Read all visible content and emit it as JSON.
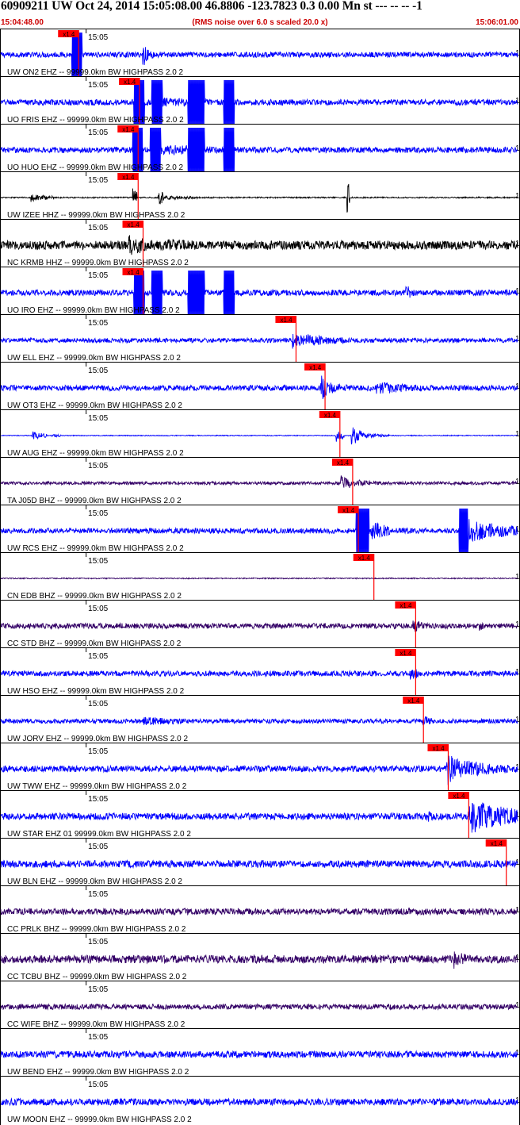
{
  "header": {
    "title": "60909211 UW Oct 24, 2014 15:05:08.00   46.8806 -123.7823  0.3 0.00 Mn st --- -- --   -1",
    "start_time": "15:04:48.00",
    "rms_note": "(RMS noise over 6.0 s scaled 20.0 x)",
    "end_time": "15:06:01.00"
  },
  "chart_data": {
    "type": "line",
    "title": "60909211 UW Oct 24, 2014 15:05:08.00   46.8806 -123.7823  0.3 0.00 Mn st --- -- --   -1",
    "time_start_s": 0,
    "time_end_s": 73,
    "time_tick_label": "15:05",
    "time_tick_s": 12,
    "pick_label": "x1.4",
    "trace_right_label": "1",
    "traces": [
      {
        "label": "UW ON2 EHZ -- 99999.0km BW  HIGHPASS  2.0  2",
        "color": "#0000ff",
        "pick_s": 11.0,
        "noise": 0.12,
        "bursts": [
          [
            10.0,
            11.5,
            0.95,
            1
          ],
          [
            20.0,
            20.6,
            0.7,
            0
          ],
          [
            20.6,
            24.0,
            0.25,
            0
          ]
        ]
      },
      {
        "label": "UO FRIS EHZ -- 99999.0km BW  HIGHPASS  2.0  2",
        "color": "#0000ff",
        "pick_s": 19.6,
        "noise": 0.13,
        "bursts": [
          [
            18.8,
            20.3,
            1.0,
            1
          ],
          [
            21.3,
            22.8,
            1.0,
            1
          ],
          [
            26.4,
            28.8,
            1.0,
            1
          ],
          [
            31.5,
            33.0,
            1.0,
            1
          ],
          [
            22.8,
            40.0,
            0.22,
            0
          ]
        ]
      },
      {
        "label": "UO HUO EHZ -- 99999.0km BW  HIGHPASS  2.0  2",
        "color": "#0000ff",
        "pick_s": 19.4,
        "noise": 0.13,
        "bursts": [
          [
            18.6,
            20.1,
            1.0,
            1
          ],
          [
            21.1,
            22.6,
            1.0,
            1
          ],
          [
            26.4,
            28.8,
            1.0,
            1
          ],
          [
            31.5,
            33.0,
            1.0,
            1
          ],
          [
            22.6,
            42.0,
            0.25,
            0
          ]
        ]
      },
      {
        "label": "UW IZEE HHZ -- 99999.0km BW  HIGHPASS  2.0  2",
        "color": "#000000",
        "pick_s": 19.4,
        "noise": 0.03,
        "bursts": [
          [
            4.2,
            7.5,
            0.2,
            0
          ],
          [
            18.6,
            19.4,
            0.45,
            0
          ],
          [
            22.2,
            23.0,
            0.5,
            0
          ],
          [
            23.0,
            28.0,
            0.12,
            0
          ],
          [
            48.9,
            49.3,
            0.95,
            0
          ]
        ]
      },
      {
        "label": "NC KRMB HHZ -- 99999.0km BW  HIGHPASS  2.0  2",
        "color": "#000000",
        "pick_s": 20.1,
        "noise": 0.2,
        "bursts": [
          [
            18.0,
            23.5,
            0.5,
            0
          ],
          [
            23.5,
            34.0,
            0.3,
            0
          ]
        ]
      },
      {
        "label": "UO IRO EHZ -- 99999.0km BW  HIGHPASS  2.0  2",
        "color": "#0000ff",
        "pick_s": 20.1,
        "noise": 0.13,
        "bursts": [
          [
            18.8,
            20.3,
            1.0,
            1
          ],
          [
            21.3,
            22.8,
            1.0,
            1
          ],
          [
            26.4,
            28.8,
            1.0,
            1
          ],
          [
            31.5,
            33.0,
            1.0,
            1
          ],
          [
            57.2,
            57.8,
            0.45,
            0
          ]
        ]
      },
      {
        "label": "UW ELL EHZ -- 99999.0km BW  HIGHPASS  2.0  2",
        "color": "#0000ff",
        "pick_s": 41.7,
        "noise": 0.1,
        "bursts": [
          [
            41.2,
            43.0,
            0.45,
            0
          ],
          [
            43.0,
            49.0,
            0.3,
            0
          ]
        ]
      },
      {
        "label": "UW OT3 EHZ -- 99999.0km BW  HIGHPASS  2.0  2",
        "color": "#0000ff",
        "pick_s": 45.8,
        "noise": 0.12,
        "bursts": [
          [
            45.2,
            47.0,
            0.6,
            0
          ],
          [
            47.0,
            53.0,
            0.2,
            0
          ],
          [
            53.0,
            62.0,
            0.28,
            0
          ]
        ]
      },
      {
        "label": "UW AUG EHZ -- 99999.0km BW  HIGHPASS  2.0  2",
        "color": "#0000ff",
        "pick_s": 47.9,
        "noise": 0.02,
        "bursts": [
          [
            4.4,
            6.5,
            0.2,
            0
          ],
          [
            7.2,
            8.8,
            0.1,
            0
          ],
          [
            47.3,
            48.5,
            0.3,
            0
          ],
          [
            49.5,
            51.0,
            0.5,
            0
          ],
          [
            51.0,
            55.0,
            0.12,
            0
          ]
        ]
      },
      {
        "label": "TA J05D BHZ -- 99999.0km BW  HIGHPASS  2.0  2",
        "color": "#330066",
        "pick_s": 49.7,
        "noise": 0.07,
        "bursts": [
          [
            48.0,
            50.5,
            0.35,
            0
          ],
          [
            50.5,
            55.0,
            0.15,
            0
          ]
        ]
      },
      {
        "label": "UW RCS EHZ -- 99999.0km BW  HIGHPASS  2.0  2",
        "color": "#0000ff",
        "pick_s": 50.5,
        "noise": 0.12,
        "bursts": [
          [
            50.2,
            52.0,
            1.0,
            1
          ],
          [
            52.0,
            55.0,
            0.55,
            0
          ],
          [
            64.7,
            66.0,
            1.0,
            1
          ],
          [
            66.0,
            73.0,
            0.55,
            0
          ]
        ]
      },
      {
        "label": "CN EDB BHZ -- 99999.0km BW  HIGHPASS  2.0  2",
        "color": "#330066",
        "pick_s": 52.7,
        "noise": 0.025,
        "bursts": []
      },
      {
        "label": "CC STD BHZ -- 99999.0km BW  HIGHPASS  2.0  2",
        "color": "#330066",
        "pick_s": 58.6,
        "noise": 0.12,
        "bursts": [
          [
            58.2,
            59.5,
            0.4,
            0
          ],
          [
            67.5,
            68.5,
            0.25,
            0
          ]
        ]
      },
      {
        "label": "UW HSO EHZ -- 99999.0km BW  HIGHPASS  2.0  2",
        "color": "#0000ff",
        "pick_s": 58.6,
        "noise": 0.12,
        "bursts": [
          [
            57.8,
            59.0,
            0.4,
            0
          ]
        ]
      },
      {
        "label": "UW JORV EHZ -- 99999.0km BW  HIGHPASS  2.0  2",
        "color": "#0000ff",
        "pick_s": 59.7,
        "noise": 0.1,
        "bursts": [
          [
            20.0,
            30.0,
            0.2,
            0
          ],
          [
            59.5,
            61.0,
            0.3,
            0
          ]
        ]
      },
      {
        "label": "UW TWW EHZ -- 99999.0km BW  HIGHPASS  2.0  2",
        "color": "#0000ff",
        "pick_s": 63.2,
        "noise": 0.14,
        "bursts": [
          [
            63.0,
            65.5,
            0.8,
            0
          ],
          [
            65.5,
            73.0,
            0.4,
            0
          ]
        ]
      },
      {
        "label": "UW STAR EHZ 01 99999.0km BW  HIGHPASS  2.0  2",
        "color": "#0000ff",
        "pick_s": 66.1,
        "noise": 0.15,
        "bursts": [
          [
            60.0,
            62.0,
            0.3,
            0
          ],
          [
            66.0,
            73.0,
            0.85,
            0
          ]
        ]
      },
      {
        "label": "UW BLN EHZ -- 99999.0km BW  HIGHPASS  2.0  2",
        "color": "#0000ff",
        "pick_s": 71.4,
        "noise": 0.16,
        "bursts": []
      },
      {
        "label": "CC PRLK BHZ -- 99999.0km BW  HIGHPASS  2.0  2",
        "color": "#330066",
        "pick_s": null,
        "noise": 0.14,
        "bursts": []
      },
      {
        "label": "CC TCBU BHZ -- 99999.0km BW  HIGHPASS  2.0  2",
        "color": "#330066",
        "pick_s": null,
        "noise": 0.18,
        "bursts": [
          [
            64.0,
            66.0,
            0.45,
            0
          ]
        ]
      },
      {
        "label": "CC WIFE BHZ -- 99999.0km BW  HIGHPASS  2.0  2",
        "color": "#330066",
        "pick_s": null,
        "noise": 0.12,
        "bursts": []
      },
      {
        "label": "UW BEND EHZ -- 99999.0km BW  HIGHPASS  2.0  2",
        "color": "#0000ff",
        "pick_s": null,
        "noise": 0.15,
        "bursts": []
      },
      {
        "label": "UW MOON EHZ -- 99999.0km BW  HIGHPASS  2.0  2",
        "color": "#0000ff",
        "pick_s": null,
        "noise": 0.15,
        "bursts": []
      }
    ]
  },
  "style": {
    "pick_color": "#ff0000",
    "header_accent": "#cc0000",
    "grid_color": "#000000"
  }
}
